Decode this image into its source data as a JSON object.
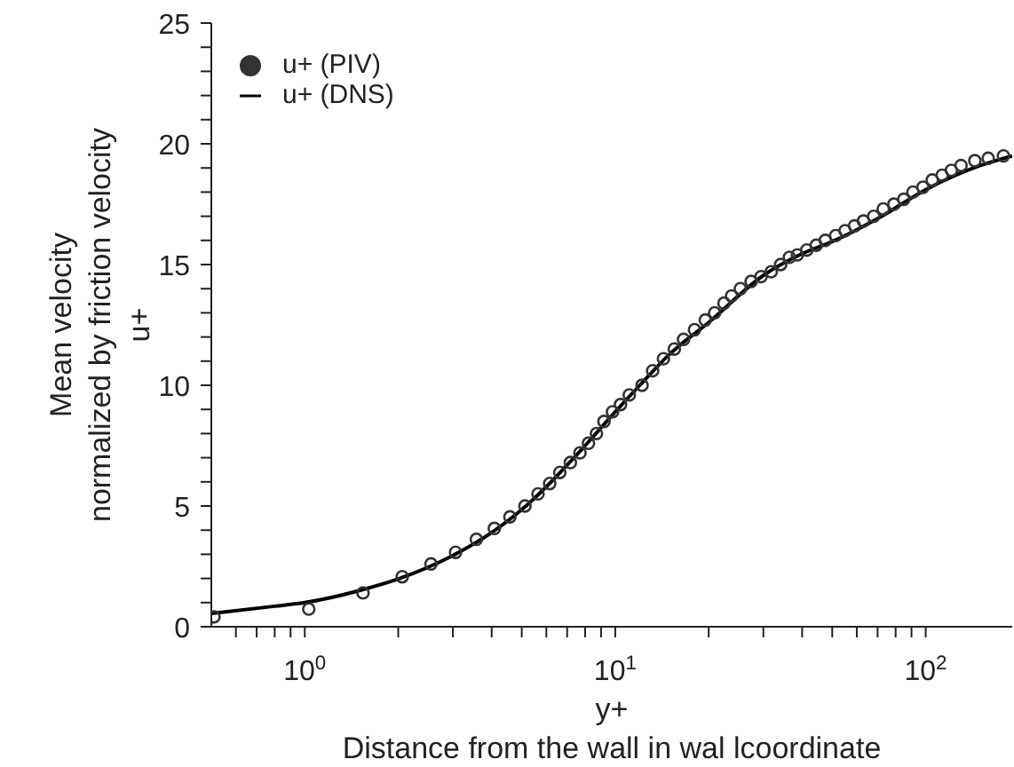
{
  "chart_data": {
    "type": "line",
    "xlabel": "y+\nDistance from the wall in wal lcoordinate",
    "ylabel": "Mean velocity\nnormalized by friction velocity\nu+",
    "log": "x",
    "xlim": [
      0.5,
      190
    ],
    "ylim": [
      0,
      25
    ],
    "xticks": [
      {
        "value": 0.6,
        "label": null
      },
      {
        "value": 0.7,
        "label": null
      },
      {
        "value": 0.8,
        "label": null
      },
      {
        "value": 0.9,
        "label": null
      },
      {
        "value": 1,
        "label": "10$^{0}$"
      },
      {
        "value": 2,
        "label": null
      },
      {
        "value": 3,
        "label": null
      },
      {
        "value": 4,
        "label": null
      },
      {
        "value": 5,
        "label": null
      },
      {
        "value": 6,
        "label": null
      },
      {
        "value": 7,
        "label": null
      },
      {
        "value": 8,
        "label": null
      },
      {
        "value": 9,
        "label": null
      },
      {
        "value": 10,
        "label": "10$^{1}$"
      },
      {
        "value": 20,
        "label": null
      },
      {
        "value": 30,
        "label": null
      },
      {
        "value": 40,
        "label": null
      },
      {
        "value": 50,
        "label": null
      },
      {
        "value": 60,
        "label": null
      },
      {
        "value": 70,
        "label": null
      },
      {
        "value": 80,
        "label": null
      },
      {
        "value": 90,
        "label": null
      },
      {
        "value": 100,
        "label": "10$^{2}$"
      }
    ],
    "yticks": [
      0,
      {
        "value": 1,
        "label": null
      },
      {
        "value": 2,
        "label": null
      },
      {
        "value": 3,
        "label": null
      },
      {
        "value": 4,
        "label": null
      },
      5,
      {
        "value": 6,
        "label": null
      },
      {
        "value": 7,
        "label": null
      },
      {
        "value": 8,
        "label": null
      },
      {
        "value": 9,
        "label": null
      },
      10,
      {
        "value": 11,
        "label": null
      },
      {
        "value": 12,
        "label": null
      },
      {
        "value": 13,
        "label": null
      },
      {
        "value": 14,
        "label": null
      },
      15,
      {
        "value": 16,
        "label": null
      },
      {
        "value": 17,
        "label": null
      },
      {
        "value": 18,
        "label": null
      },
      {
        "value": 19,
        "label": null
      },
      20,
      {
        "value": 21,
        "label": null
      },
      {
        "value": 22,
        "label": null
      },
      {
        "value": 23,
        "label": null
      },
      {
        "value": 24,
        "label": null
      },
      25
    ],
    "grid": false,
    "legend": "top left",
    "series": [
      {
        "name": "u+ (PIV)",
        "type": "scatter",
        "marker": "circle",
        "color": "#333333",
        "x": [
          0.51,
          1.03,
          1.54,
          2.06,
          2.55,
          3.06,
          3.57,
          4.08,
          4.58,
          5.12,
          5.64,
          6.15,
          6.63,
          7.17,
          7.7,
          8.2,
          8.7,
          9.2,
          9.8,
          10.4,
          11.1,
          12.2,
          13.2,
          14.3,
          15.5,
          16.6,
          18,
          19.5,
          20.9,
          22.4,
          23.7,
          25.3,
          27.4,
          29.5,
          31.8,
          34.1,
          36.4,
          38.6,
          41.4,
          44.4,
          47.5,
          51.3,
          55,
          59,
          63,
          68,
          73,
          79,
          85,
          91,
          98,
          105,
          113,
          121,
          130,
          144,
          159,
          178
        ],
        "values": [
          0.41,
          0.73,
          1.4,
          2.07,
          2.6,
          3.08,
          3.62,
          4.07,
          4.55,
          5.0,
          5.5,
          5.93,
          6.39,
          6.8,
          7.2,
          7.6,
          8.0,
          8.5,
          8.9,
          9.2,
          9.6,
          10.0,
          10.6,
          11.1,
          11.5,
          11.9,
          12.3,
          12.7,
          13.0,
          13.4,
          13.7,
          14.0,
          14.3,
          14.5,
          14.7,
          15.0,
          15.3,
          15.4,
          15.6,
          15.8,
          16.0,
          16.2,
          16.4,
          16.6,
          16.8,
          17.0,
          17.3,
          17.5,
          17.7,
          18.0,
          18.2,
          18.5,
          18.7,
          18.9,
          19.1,
          19.3,
          19.4,
          19.5
        ]
      },
      {
        "name": "u+ (DNS)",
        "type": "line",
        "marker": "none",
        "line_style": "solid",
        "color": "#000000",
        "x": [
          0.5,
          0.8,
          1,
          1.5,
          2,
          3,
          4,
          5,
          6,
          7,
          8,
          10,
          12,
          15,
          20,
          30,
          40,
          50,
          70,
          100,
          150,
          190
        ],
        "values": [
          0.55,
          0.85,
          1.0,
          1.5,
          1.98,
          2.95,
          3.9,
          4.85,
          5.8,
          6.7,
          7.5,
          8.9,
          10.0,
          11.3,
          12.6,
          14.55,
          15.45,
          15.95,
          16.9,
          18.1,
          19.1,
          19.5
        ]
      }
    ]
  }
}
